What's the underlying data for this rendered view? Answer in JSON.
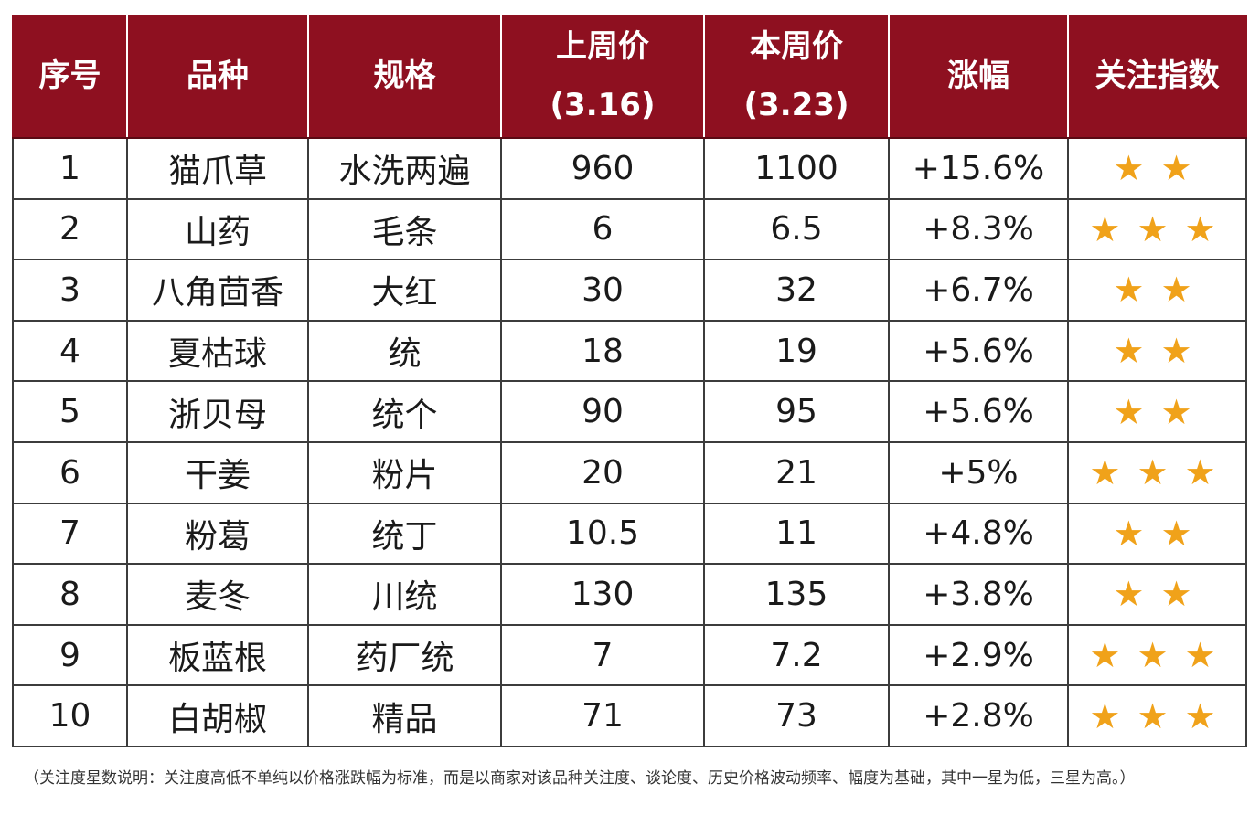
{
  "header": {
    "col1": "序号",
    "col2": "品种",
    "col3": "规格",
    "col4_line1": "上周价",
    "col4_line2": "(3.16)",
    "col5_line1": "本周价",
    "col5_line2": "(3.23)",
    "col6": "涨幅",
    "col7": "关注指数"
  },
  "rows": [
    {
      "no": "1",
      "name": "猫爪草",
      "spec": "水洗两遍",
      "last": "960",
      "this": "1100",
      "change": "+15.6%",
      "stars": 2
    },
    {
      "no": "2",
      "name": "山药",
      "spec": "毛条",
      "last": "6",
      "this": "6.5",
      "change": "+8.3%",
      "stars": 3
    },
    {
      "no": "3",
      "name": "八角茴香",
      "spec": "大红",
      "last": "30",
      "this": "32",
      "change": "+6.7%",
      "stars": 2
    },
    {
      "no": "4",
      "name": "夏枯球",
      "spec": "统",
      "last": "18",
      "this": "19",
      "change": "+5.6%",
      "stars": 2
    },
    {
      "no": "5",
      "name": "浙贝母",
      "spec": "统个",
      "last": "90",
      "this": "95",
      "change": "+5.6%",
      "stars": 2
    },
    {
      "no": "6",
      "name": "干姜",
      "spec": "粉片",
      "last": "20",
      "this": "21",
      "change": "+5%",
      "stars": 3
    },
    {
      "no": "7",
      "name": "粉葛",
      "spec": "统丁",
      "last": "10.5",
      "this": "11",
      "change": "+4.8%",
      "stars": 2
    },
    {
      "no": "8",
      "name": "麦冬",
      "spec": "川统",
      "last": "130",
      "this": "135",
      "change": "+3.8%",
      "stars": 2
    },
    {
      "no": "9",
      "name": "板蓝根",
      "spec": "药厂统",
      "last": "7",
      "this": "7.2",
      "change": "+2.9%",
      "stars": 3
    },
    {
      "no": "10",
      "name": "白胡椒",
      "spec": "精品",
      "last": "71",
      "this": "73",
      "change": "+2.8%",
      "stars": 3
    }
  ],
  "star_glyph": "★",
  "colors": {
    "header_bg": "#8e1020",
    "star": "#f0a21a"
  },
  "footnote": "（关注度星数说明：关注度高低不单纯以价格涨跌幅为标准，而是以商家对该品种关注度、谈论度、历史价格波动频率、幅度为基础，其中一星为低，三星为高。）"
}
